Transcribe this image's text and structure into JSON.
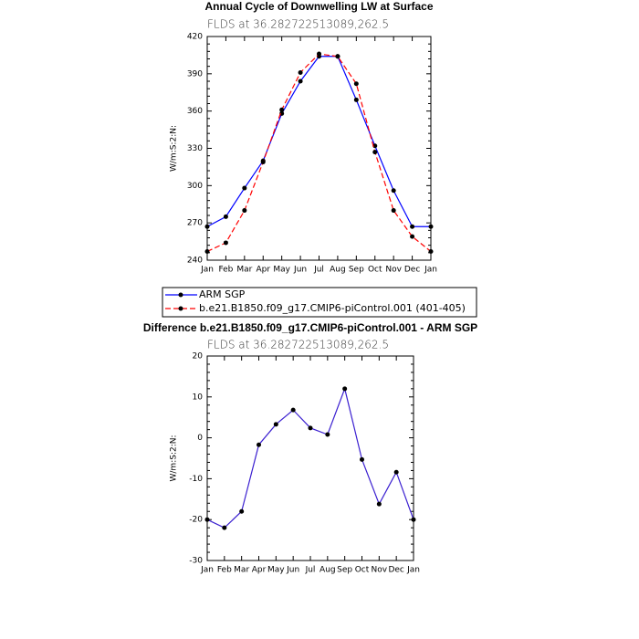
{
  "chart_data": [
    {
      "type": "line",
      "title": "Annual Cycle of Downwelling LW at Surface",
      "subtitle": "FLDS at 36.282722513089,262.5",
      "y_label": "W/m:S:2:N:",
      "categories": [
        "Jan",
        "Feb",
        "Mar",
        "Apr",
        "May",
        "Jun",
        "Jul",
        "Aug",
        "Sep",
        "Oct",
        "Nov",
        "Dec",
        "Jan"
      ],
      "series": [
        {
          "name": "ARM SGP",
          "color": "#0000ff",
          "dash": false,
          "values": [
            267,
            275,
            298,
            320,
            358,
            384,
            404,
            404,
            369,
            332,
            296,
            267,
            267
          ]
        },
        {
          "name": "b.e21.B1850.f09_g17.CMIP6-piControl.001 (401-405)",
          "color": "#ff0000",
          "dash": true,
          "values": [
            247,
            254,
            280,
            319,
            361,
            391,
            406,
            404,
            382,
            327,
            280,
            259,
            247
          ]
        }
      ],
      "ylim": [
        240,
        420
      ],
      "yticks": [
        240,
        270,
        300,
        330,
        360,
        390,
        420
      ],
      "legend": "below"
    },
    {
      "type": "line",
      "title": "Difference b.e21.B1850.f09_g17.CMIP6-piControl.001 - ARM SGP",
      "subtitle": "FLDS at 36.282722513089,262.5",
      "y_label": "W/m:S:2:N:",
      "categories": [
        "Jan",
        "Feb",
        "Mar",
        "Apr",
        "May",
        "Jun",
        "Jul",
        "Aug",
        "Sep",
        "Oct",
        "Nov",
        "Dec",
        "Jan"
      ],
      "series": [
        {
          "color": "#3a1fd0",
          "dash": false,
          "values": [
            -20,
            -22,
            -18,
            -1.7,
            3.3,
            6.8,
            2.4,
            0.8,
            12,
            -5.3,
            -16.2,
            -8.4,
            -20
          ]
        }
      ],
      "ylim": [
        -30,
        20
      ],
      "yticks": [
        -30,
        -20,
        -10,
        0,
        10,
        20
      ]
    }
  ]
}
